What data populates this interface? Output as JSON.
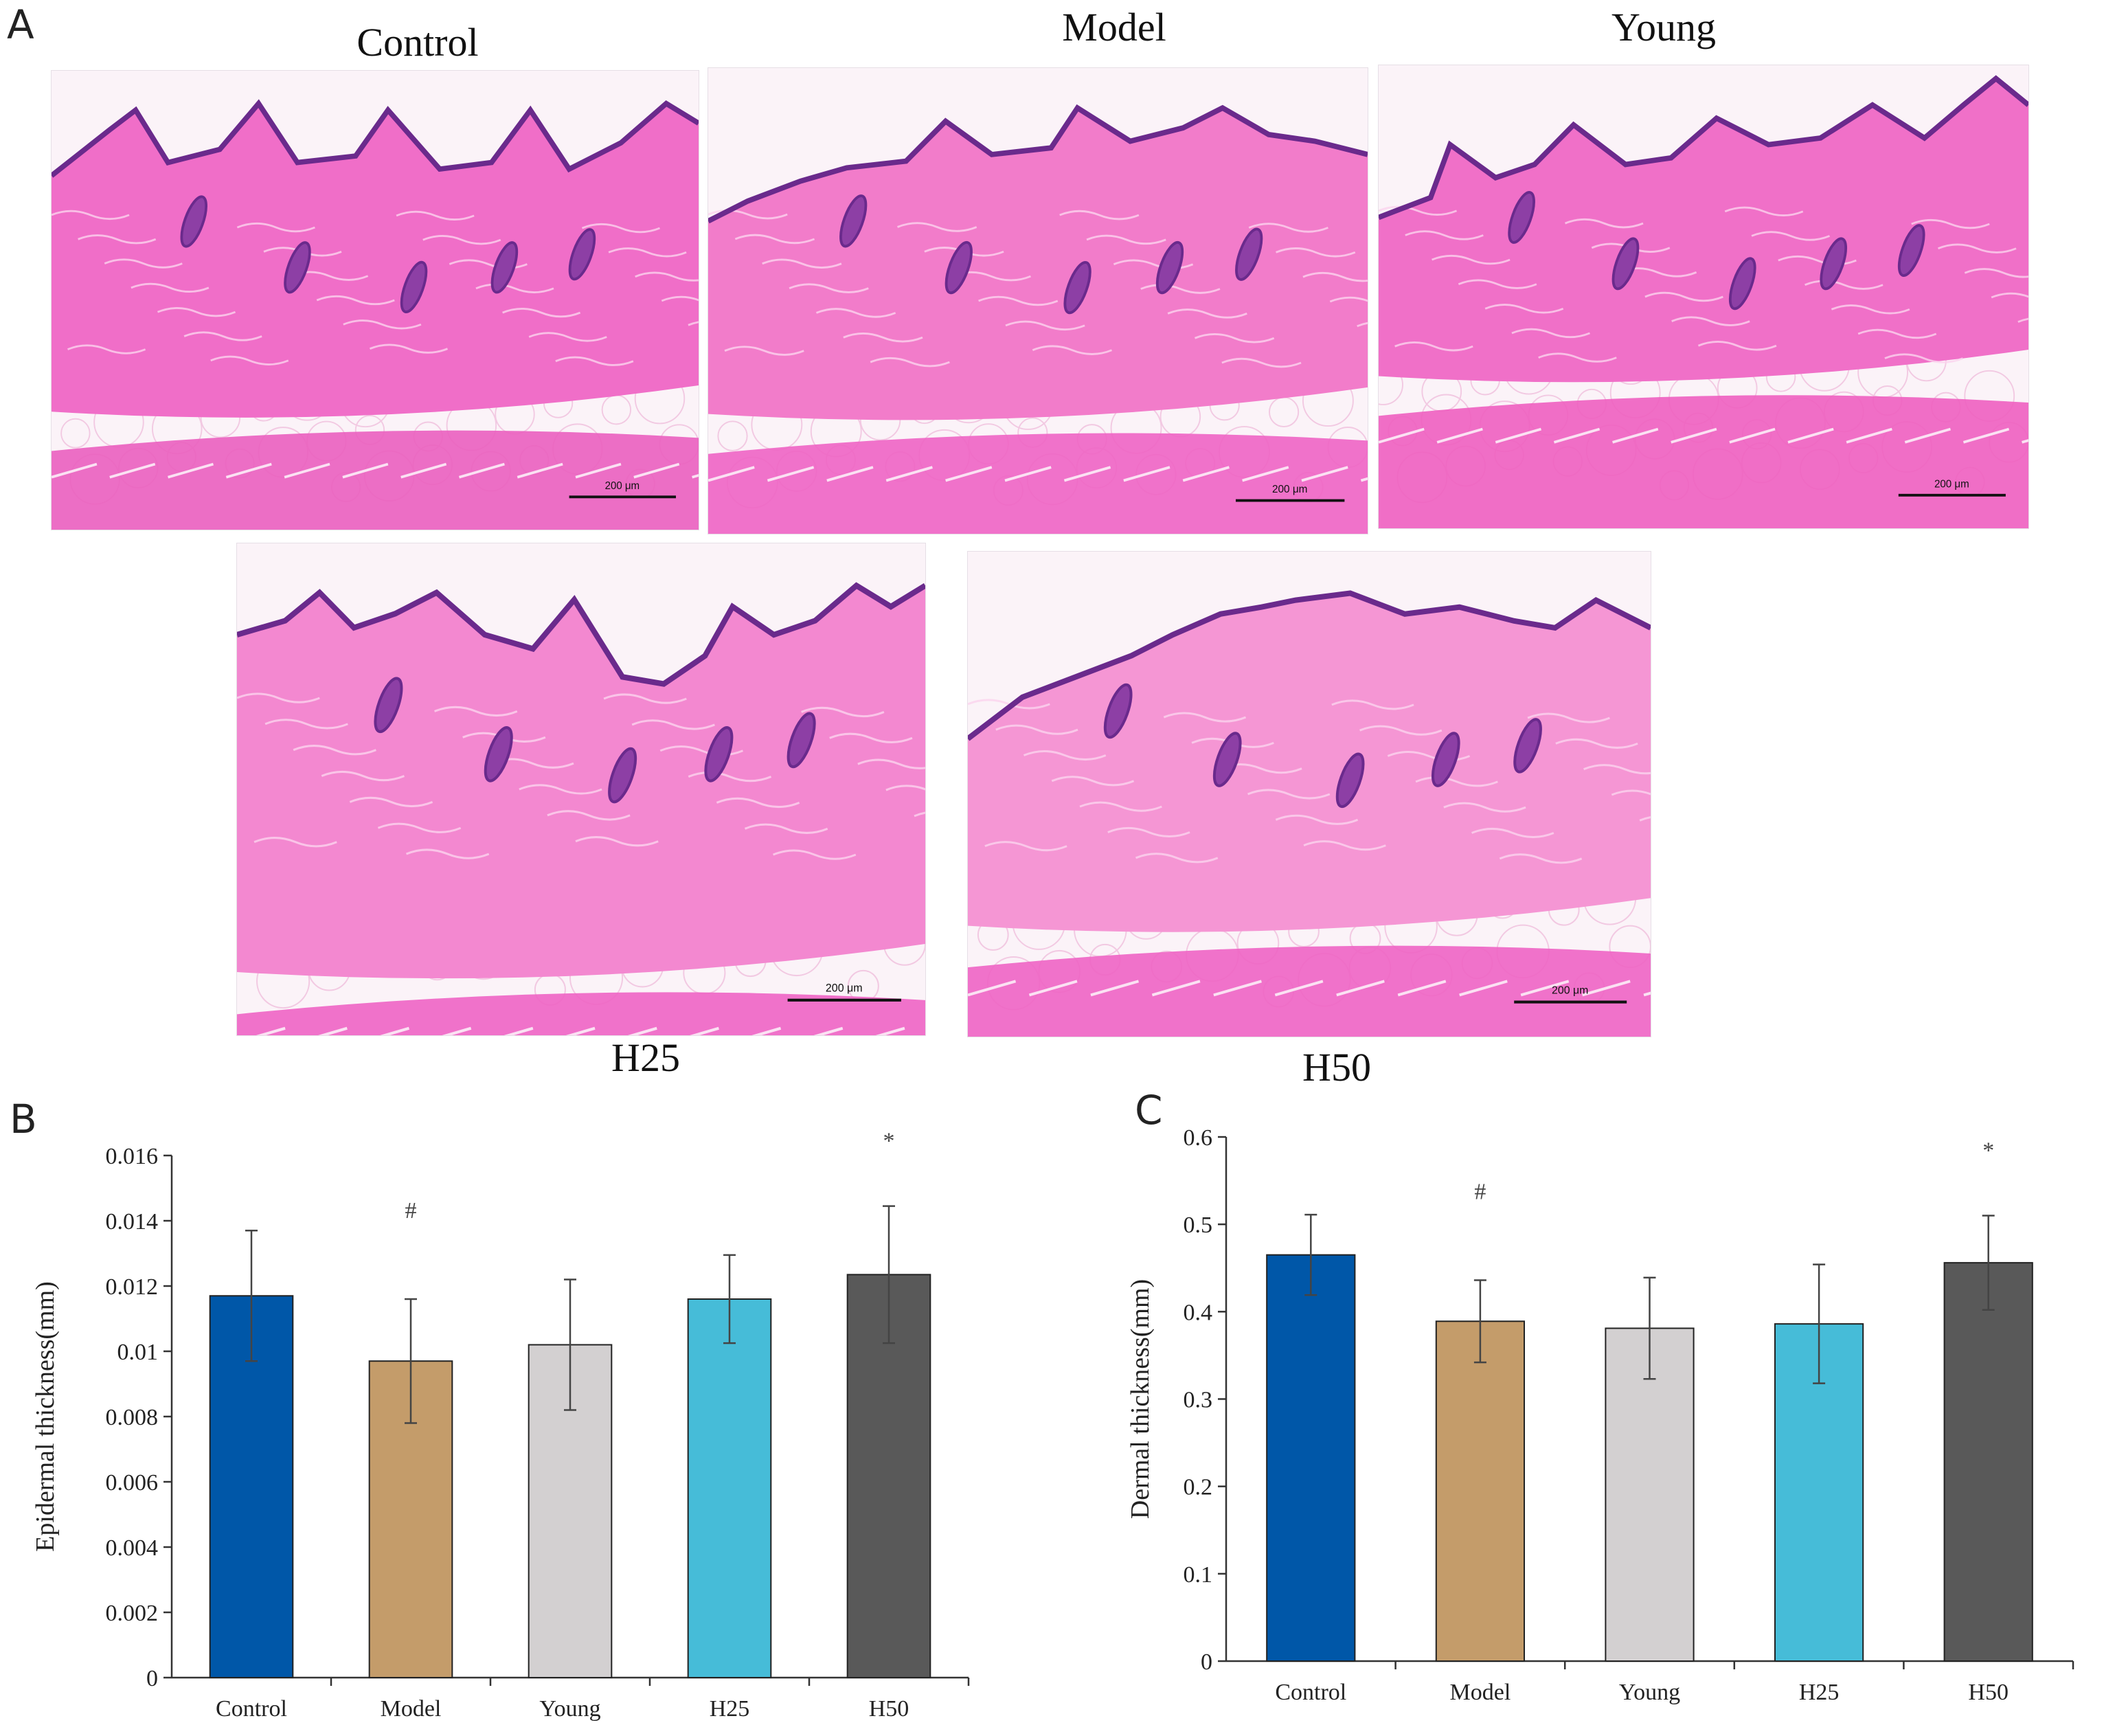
{
  "panels": {
    "a_label": "A",
    "b_label": "B",
    "c_label": "C"
  },
  "micrographs": [
    {
      "group": "Control",
      "scale_label": "200 μm",
      "colors": {
        "dermis": "#f06ec8",
        "epidermis": "#6a2a8c",
        "fat": "#fbf3f8",
        "muscle": "#ea5fbf"
      }
    },
    {
      "group": "Model",
      "scale_label": "200 μm",
      "colors": {
        "dermis": "#f27cca",
        "epidermis": "#6a2a8c",
        "fat": "#fbf3f8",
        "muscle": "#ee64c4"
      }
    },
    {
      "group": "Young",
      "scale_label": "200 μm",
      "colors": {
        "dermis": "#f070c8",
        "epidermis": "#6a2a8c",
        "fat": "#fbf3f8",
        "muscle": "#ee5fc0"
      }
    },
    {
      "group": "H25",
      "scale_label": "200 μm",
      "colors": {
        "dermis": "#f388d0",
        "epidermis": "#6a2a8c",
        "fat": "#fbf3f8",
        "muscle": "#ee64c4"
      }
    },
    {
      "group": "H50",
      "scale_label": "200 μm",
      "colors": {
        "dermis": "#f596d4",
        "epidermis": "#6a2a8c",
        "fat": "#fbf3f8",
        "muscle": "#ee64c4"
      }
    }
  ],
  "chart_data": [
    {
      "type": "bar",
      "panel": "B",
      "categories": [
        "Control",
        "Model",
        "Young",
        "H25",
        "H50"
      ],
      "values": [
        0.0117,
        0.0097,
        0.0102,
        0.0116,
        0.01235
      ],
      "errors": [
        0.002,
        0.0019,
        0.002,
        0.00135,
        0.0021
      ],
      "annotations": [
        "",
        "#",
        "",
        "",
        "*"
      ],
      "colors": [
        "#0057a8",
        "#c49c6a",
        "#d3d0d1",
        "#46bcd8",
        "#595959"
      ],
      "xlabel": "",
      "ylabel": "Epidermal thickness(mm)",
      "ylim": [
        0,
        0.016
      ],
      "yticks": [
        0,
        0.002,
        0.004,
        0.006,
        0.008,
        0.01,
        0.012,
        0.014,
        0.016
      ],
      "ytick_labels": [
        "0",
        "0.002",
        "0.004",
        "0.006",
        "0.008",
        "0.01",
        "0.012",
        "0.014",
        "0.016"
      ],
      "grid": false
    },
    {
      "type": "bar",
      "panel": "C",
      "categories": [
        "Control",
        "Model",
        "Young",
        "H25",
        "H50"
      ],
      "values": [
        0.465,
        0.389,
        0.381,
        0.386,
        0.456
      ],
      "errors": [
        0.046,
        0.047,
        0.058,
        0.068,
        0.054
      ],
      "annotations": [
        "",
        "#",
        "",
        "",
        "*"
      ],
      "colors": [
        "#0057a8",
        "#c49c6a",
        "#d3d0d1",
        "#46bcd8",
        "#595959"
      ],
      "xlabel": "",
      "ylabel": "Dermal thickness(mm)",
      "ylim": [
        0,
        0.6
      ],
      "yticks": [
        0,
        0.1,
        0.2,
        0.3,
        0.4,
        0.5,
        0.6
      ],
      "ytick_labels": [
        "0",
        "0.1",
        "0.2",
        "0.3",
        "0.4",
        "0.5",
        "0.6"
      ],
      "grid": false
    }
  ]
}
